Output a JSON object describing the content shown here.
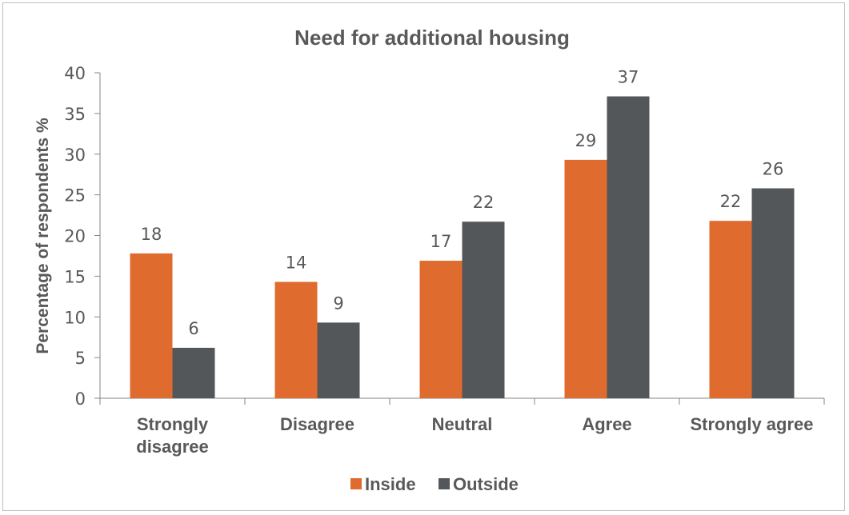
{
  "chart_data": {
    "type": "bar",
    "title": "Need for additional housing",
    "xlabel": "",
    "ylabel": "Percentage of respondents %",
    "ylim": [
      0,
      40
    ],
    "yticks": [
      0,
      5,
      10,
      15,
      20,
      25,
      30,
      35,
      40
    ],
    "categories": [
      [
        "Strongly",
        "disagree"
      ],
      [
        "Disagree"
      ],
      [
        "Neutral"
      ],
      [
        "Agree"
      ],
      [
        "Strongly agree"
      ]
    ],
    "series": [
      {
        "name": "Inside",
        "color": "#e06b2e",
        "values": [
          17.8,
          14.3,
          16.9,
          29.3,
          21.8
        ],
        "labels": [
          "18",
          "14",
          "17",
          "29",
          "22"
        ]
      },
      {
        "name": "Outside",
        "color": "#54575a",
        "values": [
          6.2,
          9.3,
          21.7,
          37.1,
          25.8
        ],
        "labels": [
          "6",
          "9",
          "22",
          "37",
          "26"
        ]
      }
    ],
    "grid": false,
    "legend_position": "bottom"
  }
}
